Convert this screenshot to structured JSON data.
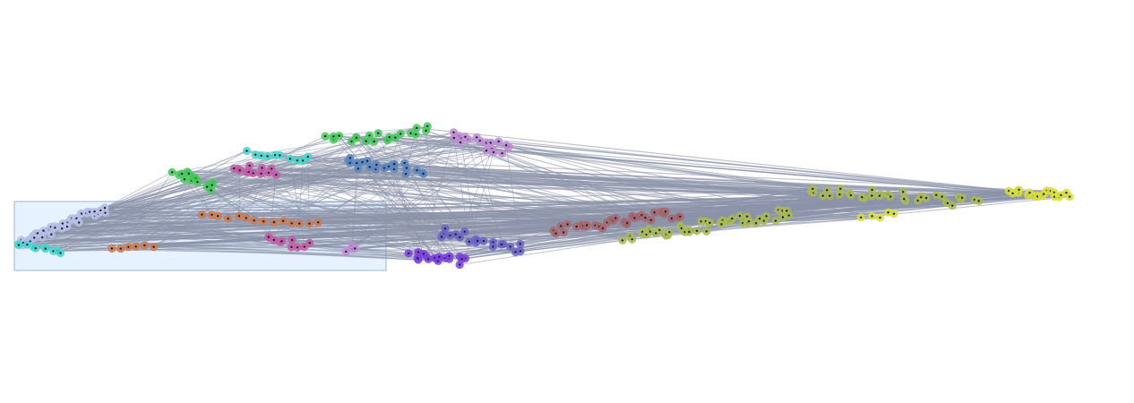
{
  "graph": {
    "edge_color": "#8c93aa",
    "node_center_color": "#1c2230",
    "clusters": [
      {
        "name": "pale-blue",
        "color": "#b7bee6"
      },
      {
        "name": "cyan",
        "color": "#45d6cc"
      },
      {
        "name": "green",
        "color": "#47c95a"
      },
      {
        "name": "orange-brown",
        "color": "#d07a4e"
      },
      {
        "name": "magenta",
        "color": "#c55aa6"
      },
      {
        "name": "steel-blue",
        "color": "#5b86c2"
      },
      {
        "name": "lilac",
        "color": "#c08bd3"
      },
      {
        "name": "violet",
        "color": "#7b3fe0"
      },
      {
        "name": "slate-purple",
        "color": "#6b63c7"
      },
      {
        "name": "mauve-brown",
        "color": "#a7676e"
      },
      {
        "name": "olive",
        "color": "#a9ba55"
      },
      {
        "name": "yellow",
        "color": "#d8de3c"
      }
    ]
  },
  "selection": {
    "fill": "#ddeeff",
    "stroke": "#98b4d6"
  }
}
